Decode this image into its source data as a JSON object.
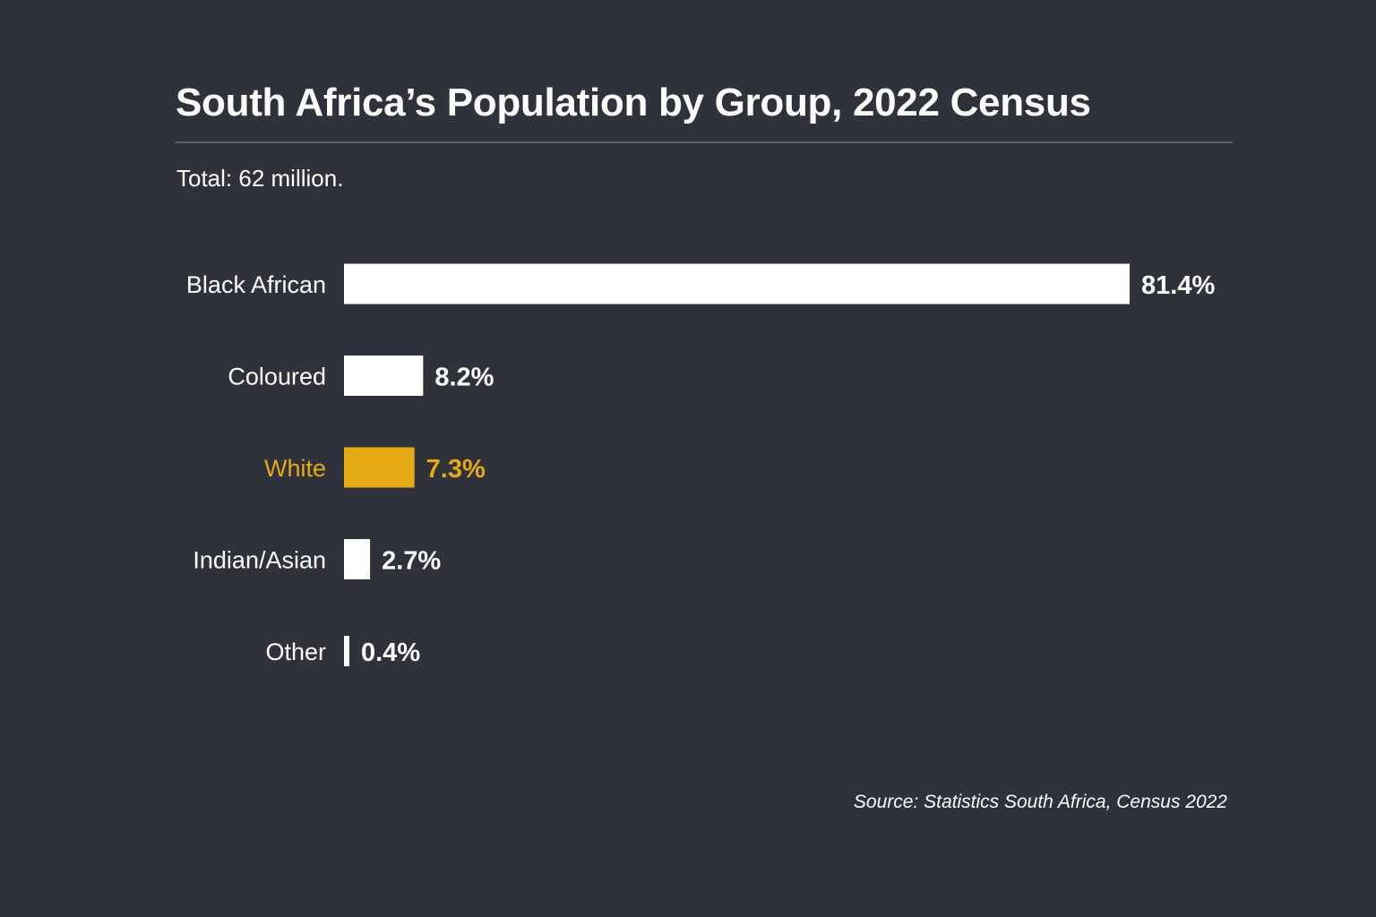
{
  "title": "South Africa’s Population by Group, 2022 Census",
  "subtitle": "Total: 62 million.",
  "source": "Source: Statistics South Africa, Census 2022",
  "colors": {
    "background": "#2f323a",
    "bar": "#ffffff",
    "highlight": "#e6aa14",
    "text": "#ffffff",
    "rule": "#5b5e66"
  },
  "chart_data": {
    "type": "bar",
    "orientation": "horizontal",
    "categories": [
      "Black African",
      "Coloured",
      "White",
      "Indian/Asian",
      "Other"
    ],
    "values": [
      81.4,
      8.2,
      7.3,
      2.7,
      0.4
    ],
    "value_labels": [
      "81.4%",
      "8.2%",
      "7.3%",
      "2.7%",
      "0.4%"
    ],
    "highlighted_category": "White",
    "unit": "%",
    "grid": false
  }
}
